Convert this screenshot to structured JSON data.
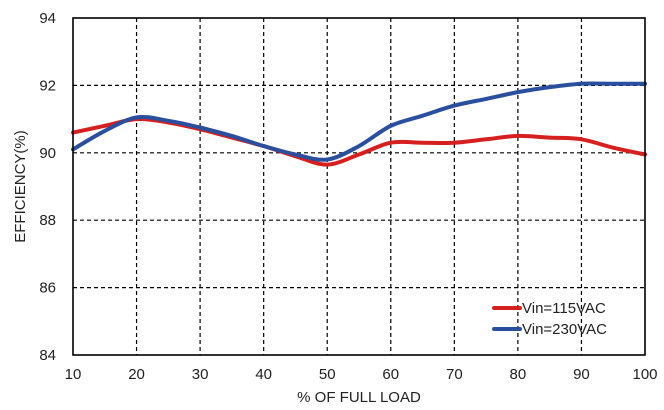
{
  "chart_data": {
    "type": "line",
    "title": "",
    "xlabel": "% OF FULL LOAD",
    "ylabel": "EFFICIENCY(%)",
    "xlim": [
      10,
      100
    ],
    "ylim": [
      84,
      94
    ],
    "xticks": [
      10,
      20,
      30,
      40,
      50,
      60,
      70,
      80,
      90,
      100
    ],
    "yticks": [
      84,
      86,
      88,
      90,
      92,
      94
    ],
    "grid": true,
    "legend_position": "bottom-right",
    "series": [
      {
        "name": "Vin=115VAC",
        "color": "#d62020",
        "x": [
          10,
          15,
          20,
          25,
          30,
          35,
          40,
          45,
          50,
          55,
          60,
          65,
          70,
          75,
          80,
          85,
          90,
          95,
          100
        ],
        "y": [
          90.6,
          90.8,
          91.0,
          90.9,
          90.7,
          90.45,
          90.2,
          89.9,
          89.65,
          89.95,
          90.3,
          90.3,
          90.3,
          90.4,
          90.5,
          90.45,
          90.4,
          90.15,
          89.95
        ]
      },
      {
        "name": "Vin=230VAC",
        "color": "#2a4f9e",
        "x": [
          10,
          15,
          20,
          25,
          30,
          35,
          40,
          45,
          50,
          55,
          60,
          65,
          70,
          75,
          80,
          85,
          90,
          95,
          100
        ],
        "y": [
          90.1,
          90.65,
          91.05,
          90.95,
          90.75,
          90.5,
          90.2,
          89.95,
          89.8,
          90.2,
          90.8,
          91.1,
          91.4,
          91.6,
          91.8,
          91.95,
          92.05,
          92.05,
          92.05
        ]
      }
    ]
  }
}
